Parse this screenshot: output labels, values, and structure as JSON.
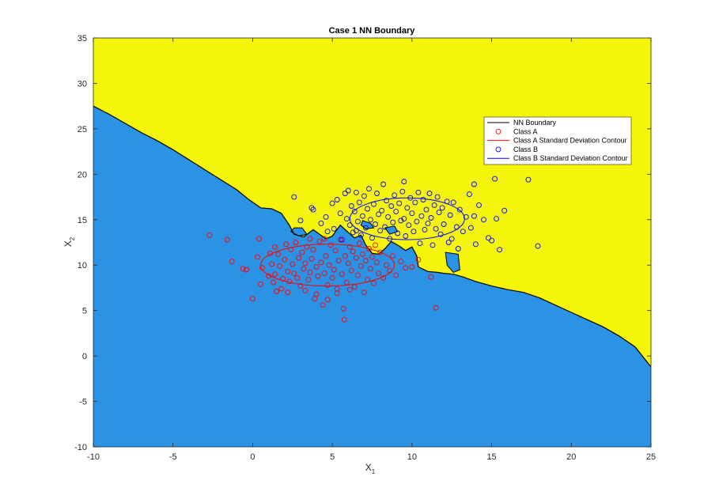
{
  "chart_data": {
    "type": "scatter",
    "title": "Case 1 NN Boundary",
    "xlabel": {
      "main": "X",
      "sub": "1"
    },
    "ylabel": {
      "main": "X",
      "sub": "2"
    },
    "xlim": [
      -10,
      25
    ],
    "ylim": [
      -10,
      35
    ],
    "xticks": [
      -10,
      -5,
      0,
      5,
      10,
      15,
      20,
      25
    ],
    "yticks": [
      -10,
      -5,
      0,
      5,
      10,
      15,
      20,
      25,
      30,
      35
    ],
    "legend_position": "top-right",
    "colors": {
      "region_a": "#2b93e6",
      "region_b": "#f5f50c",
      "class_a": "#ff0000",
      "class_b": "#0000ff",
      "boundary": "#000000"
    },
    "legend": [
      {
        "label": "NN Boundary",
        "kind": "line",
        "color": "#000000"
      },
      {
        "label": "Class A",
        "kind": "marker",
        "color": "#ff0000"
      },
      {
        "label": "Class A Standard Deviation Contour",
        "kind": "line",
        "color": "#ff0000"
      },
      {
        "label": "Class B",
        "kind": "marker",
        "color": "#0000ff"
      },
      {
        "label": "Class B Standard Deviation Contour",
        "kind": "line",
        "color": "#0000ff"
      }
    ],
    "boundary": [
      [
        -10,
        27.5
      ],
      [
        -9,
        26.6
      ],
      [
        -8,
        25.6
      ],
      [
        -7,
        24.6
      ],
      [
        -6,
        23.7
      ],
      [
        -5,
        22.7
      ],
      [
        -4,
        21.6
      ],
      [
        -3,
        20.5
      ],
      [
        -2,
        19.4
      ],
      [
        -1,
        18.3
      ],
      [
        -0.3,
        17.3
      ],
      [
        0.5,
        16.3
      ],
      [
        1.2,
        16.2
      ],
      [
        1.8,
        15.7
      ],
      [
        2.3,
        14.4
      ],
      [
        2.6,
        13.4
      ],
      [
        3.2,
        13.1
      ],
      [
        3.8,
        13.9
      ],
      [
        4.2,
        13.4
      ],
      [
        4.6,
        12.9
      ],
      [
        5.0,
        13.2
      ],
      [
        5.5,
        14.4
      ],
      [
        6.0,
        13.6
      ],
      [
        6.4,
        13.0
      ],
      [
        6.8,
        13.3
      ],
      [
        7.1,
        12.2
      ],
      [
        7.5,
        11.3
      ],
      [
        7.9,
        11.2
      ],
      [
        8.3,
        11.8
      ],
      [
        8.7,
        12.6
      ],
      [
        9.2,
        12.1
      ],
      [
        9.6,
        11.6
      ],
      [
        10.0,
        12.0
      ],
      [
        10.3,
        11.0
      ],
      [
        10.4,
        9.8
      ],
      [
        11.0,
        9.3
      ],
      [
        11.6,
        9.2
      ],
      [
        12.0,
        9.1
      ],
      [
        12.6,
        9.0
      ],
      [
        13.2,
        8.7
      ],
      [
        14.0,
        8.2
      ],
      [
        15.0,
        7.7
      ],
      [
        16.0,
        7.3
      ],
      [
        17.0,
        7.0
      ],
      [
        18.0,
        6.4
      ],
      [
        19.0,
        5.6
      ],
      [
        20.0,
        4.8
      ],
      [
        21.0,
        4.0
      ],
      [
        22.0,
        3.2
      ],
      [
        23.0,
        2.2
      ],
      [
        24.0,
        1.0
      ],
      [
        25.0,
        -1.2
      ]
    ],
    "islands": [
      [
        [
          2.4,
          13.7
        ],
        [
          2.9,
          13.2
        ],
        [
          3.4,
          13.4
        ],
        [
          3.1,
          14.1
        ],
        [
          2.6,
          14.1
        ]
      ],
      [
        [
          12.1,
          11.4
        ],
        [
          12.9,
          11.2
        ],
        [
          13.0,
          9.5
        ],
        [
          12.6,
          9.2
        ],
        [
          12.2,
          10.0
        ]
      ],
      [
        [
          6.9,
          14.9
        ],
        [
          7.4,
          14.6
        ],
        [
          7.6,
          14.1
        ],
        [
          7.1,
          14.0
        ],
        [
          6.8,
          14.4
        ]
      ],
      [
        [
          8.3,
          14.1
        ],
        [
          8.9,
          14.3
        ],
        [
          9.1,
          13.7
        ],
        [
          8.6,
          13.4
        ]
      ]
    ],
    "series": [
      {
        "name": "Class A",
        "color": "#ff0000",
        "points": [
          [
            -2.7,
            13.3
          ],
          [
            -1.6,
            12.8
          ],
          [
            -1.3,
            10.4
          ],
          [
            -0.6,
            9.6
          ],
          [
            -0.4,
            9.5
          ],
          [
            0.0,
            6.3
          ],
          [
            0.3,
            10.9
          ],
          [
            0.4,
            12.9
          ],
          [
            0.5,
            7.9
          ],
          [
            0.6,
            9.7
          ],
          [
            1.0,
            8.8
          ],
          [
            1.1,
            11.3
          ],
          [
            1.2,
            10.1
          ],
          [
            1.3,
            8.1
          ],
          [
            1.4,
            12.0
          ],
          [
            1.5,
            7.1
          ],
          [
            1.6,
            11.2
          ],
          [
            1.7,
            9.9
          ],
          [
            1.8,
            7.4
          ],
          [
            1.9,
            8.5
          ],
          [
            2.0,
            10.6
          ],
          [
            2.1,
            12.3
          ],
          [
            2.2,
            9.3
          ],
          [
            2.3,
            8.2
          ],
          [
            2.4,
            11.7
          ],
          [
            2.5,
            10.1
          ],
          [
            2.6,
            9.1
          ],
          [
            2.7,
            12.5
          ],
          [
            2.8,
            8.6
          ],
          [
            2.9,
            10.8
          ],
          [
            3.0,
            7.7
          ],
          [
            3.1,
            11.4
          ],
          [
            3.2,
            9.6
          ],
          [
            3.3,
            10.2
          ],
          [
            3.4,
            12.0
          ],
          [
            3.5,
            8.4
          ],
          [
            3.6,
            9.2
          ],
          [
            3.7,
            10.7
          ],
          [
            3.8,
            11.7
          ],
          [
            3.9,
            6.3
          ],
          [
            4.0,
            9.8
          ],
          [
            4.1,
            8.8
          ],
          [
            4.2,
            12.6
          ],
          [
            4.3,
            10.3
          ],
          [
            4.4,
            5.6
          ],
          [
            4.5,
            9.1
          ],
          [
            4.6,
            11.0
          ],
          [
            4.7,
            7.8
          ],
          [
            4.8,
            10.0
          ],
          [
            4.9,
            12.2
          ],
          [
            5.0,
            8.6
          ],
          [
            5.1,
            9.5
          ],
          [
            5.2,
            11.6
          ],
          [
            5.3,
            7.4
          ],
          [
            5.4,
            10.5
          ],
          [
            5.5,
            12.8
          ],
          [
            5.6,
            9.0
          ],
          [
            5.7,
            5.2
          ],
          [
            5.75,
            4.0
          ],
          [
            5.8,
            11.0
          ],
          [
            5.9,
            8.1
          ],
          [
            6.0,
            10.2
          ],
          [
            6.1,
            12.0
          ],
          [
            6.2,
            9.4
          ],
          [
            6.3,
            11.5
          ],
          [
            6.4,
            7.6
          ],
          [
            6.5,
            10.8
          ],
          [
            6.6,
            8.9
          ],
          [
            6.7,
            12.4
          ],
          [
            6.8,
            9.9
          ],
          [
            6.9,
            11.2
          ],
          [
            7.0,
            7.0
          ],
          [
            7.1,
            10.5
          ],
          [
            7.2,
            8.4
          ],
          [
            7.3,
            11.8
          ],
          [
            7.4,
            9.6
          ],
          [
            7.5,
            10.9
          ],
          [
            7.6,
            8.0
          ],
          [
            7.7,
            12.2
          ],
          [
            7.8,
            10.3
          ],
          [
            7.9,
            9.1
          ],
          [
            8.0,
            11.4
          ],
          [
            8.2,
            8.6
          ],
          [
            8.4,
            10.0
          ],
          [
            8.6,
            9.4
          ],
          [
            8.8,
            11.0
          ],
          [
            9.0,
            8.9
          ],
          [
            9.3,
            10.4
          ],
          [
            9.6,
            9.7
          ],
          [
            10.0,
            9.8
          ],
          [
            10.4,
            10.6
          ],
          [
            11.2,
            8.7
          ],
          [
            11.5,
            5.3
          ],
          [
            2.2,
            7.0
          ],
          [
            3.3,
            7.2
          ],
          [
            4.0,
            6.8
          ],
          [
            4.7,
            6.2
          ],
          [
            5.3,
            6.9
          ],
          [
            6.1,
            7.3
          ],
          [
            3.6,
            12.9
          ],
          [
            4.5,
            12.9
          ],
          [
            1.4,
            9.0
          ]
        ]
      },
      {
        "name": "Class B",
        "color": "#0000ff",
        "points": [
          [
            2.6,
            17.5
          ],
          [
            3.0,
            14.9
          ],
          [
            3.7,
            16.3
          ],
          [
            3.8,
            16.1
          ],
          [
            4.3,
            14.6
          ],
          [
            4.6,
            15.3
          ],
          [
            4.7,
            13.7
          ],
          [
            5.0,
            16.8
          ],
          [
            5.1,
            14.0
          ],
          [
            5.3,
            17.2
          ],
          [
            5.5,
            15.7
          ],
          [
            5.6,
            12.8
          ],
          [
            5.8,
            17.9
          ],
          [
            5.9,
            15.1
          ],
          [
            6.0,
            18.2
          ],
          [
            6.1,
            14.4
          ],
          [
            6.2,
            16.5
          ],
          [
            6.3,
            13.6
          ],
          [
            6.4,
            15.9
          ],
          [
            6.5,
            18.0
          ],
          [
            6.6,
            14.8
          ],
          [
            6.7,
            16.9
          ],
          [
            6.8,
            13.3
          ],
          [
            6.9,
            15.4
          ],
          [
            7.0,
            17.6
          ],
          [
            7.1,
            14.1
          ],
          [
            7.2,
            16.2
          ],
          [
            7.3,
            18.4
          ],
          [
            7.4,
            15.0
          ],
          [
            7.5,
            13.0
          ],
          [
            7.6,
            16.7
          ],
          [
            7.7,
            14.5
          ],
          [
            7.8,
            17.9
          ],
          [
            7.9,
            15.6
          ],
          [
            8.0,
            13.8
          ],
          [
            8.1,
            16.0
          ],
          [
            8.2,
            18.9
          ],
          [
            8.3,
            14.2
          ],
          [
            8.4,
            17.1
          ],
          [
            8.5,
            15.3
          ],
          [
            8.6,
            12.9
          ],
          [
            8.7,
            16.5
          ],
          [
            8.8,
            14.7
          ],
          [
            8.9,
            17.7
          ],
          [
            9.0,
            15.9
          ],
          [
            9.1,
            13.5
          ],
          [
            9.2,
            16.8
          ],
          [
            9.3,
            14.9
          ],
          [
            9.4,
            18.1
          ],
          [
            9.5,
            15.1
          ],
          [
            9.6,
            13.2
          ],
          [
            9.7,
            16.3
          ],
          [
            9.8,
            14.4
          ],
          [
            9.9,
            17.4
          ],
          [
            10.0,
            15.7
          ],
          [
            10.1,
            13.7
          ],
          [
            10.2,
            16.9
          ],
          [
            10.3,
            14.8
          ],
          [
            10.4,
            18.0
          ],
          [
            10.5,
            12.4
          ],
          [
            10.6,
            15.4
          ],
          [
            10.7,
            17.2
          ],
          [
            10.8,
            13.9
          ],
          [
            10.9,
            16.1
          ],
          [
            11.0,
            14.6
          ],
          [
            11.1,
            17.9
          ],
          [
            11.2,
            15.2
          ],
          [
            11.3,
            12.2
          ],
          [
            11.4,
            16.6
          ],
          [
            11.5,
            14.0
          ],
          [
            11.6,
            17.5
          ],
          [
            11.7,
            15.8
          ],
          [
            11.8,
            13.4
          ],
          [
            11.9,
            16.3
          ],
          [
            12.0,
            14.5
          ],
          [
            12.2,
            17.0
          ],
          [
            12.3,
            12.5
          ],
          [
            12.4,
            15.5
          ],
          [
            12.6,
            16.9
          ],
          [
            12.8,
            14.2
          ],
          [
            13.0,
            16.1
          ],
          [
            13.2,
            13.7
          ],
          [
            13.4,
            15.3
          ],
          [
            13.6,
            17.8
          ],
          [
            13.7,
            14.1
          ],
          [
            13.9,
            15.4
          ],
          [
            14.0,
            12.3
          ],
          [
            14.2,
            16.6
          ],
          [
            14.5,
            15.0
          ],
          [
            14.8,
            13.0
          ],
          [
            15.0,
            12.7
          ],
          [
            15.2,
            19.5
          ],
          [
            15.3,
            15.1
          ],
          [
            15.5,
            11.7
          ],
          [
            15.8,
            16.0
          ],
          [
            17.3,
            19.4
          ],
          [
            17.9,
            12.1
          ],
          [
            13.9,
            18.9
          ],
          [
            12.9,
            11.8
          ],
          [
            12.5,
            12.9
          ],
          [
            9.5,
            19.2
          ],
          [
            6.5,
            13.8
          ]
        ]
      }
    ],
    "ellipses": [
      {
        "series": "Class A",
        "color": "#ff0000",
        "cx": 4.7,
        "cy": 10.0,
        "rx": 4.2,
        "ry": 2.3
      },
      {
        "series": "Class B",
        "color": "#0000ff",
        "cx": 9.7,
        "cy": 15.1,
        "rx": 3.6,
        "ry": 2.3
      }
    ]
  }
}
